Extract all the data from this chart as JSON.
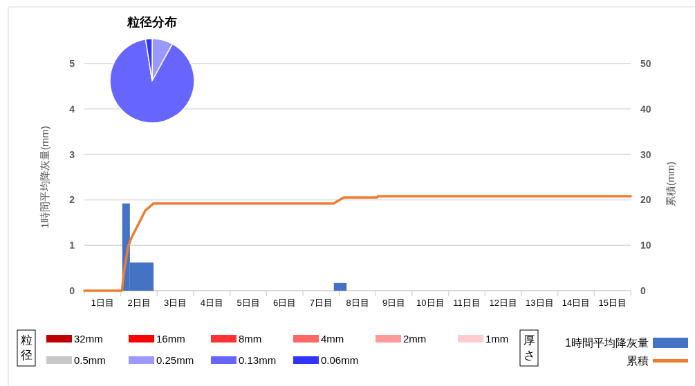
{
  "chart_data": [
    {
      "type": "line",
      "ylabel": "1時間平均降灰量(mm)",
      "y2label": "累積(mm)",
      "legend_title": "厚さ",
      "legend": "bottom right",
      "grid": "y",
      "xlim": [
        0,
        15
      ],
      "xticks": [
        {
          "value": 0,
          "label": null
        },
        {
          "value": 0.5,
          "label": "1日目"
        },
        {
          "value": 1,
          "label": null
        },
        {
          "value": 1.5,
          "label": "2日目"
        },
        {
          "value": 2,
          "label": null
        },
        {
          "value": 2.5,
          "label": "3日目"
        },
        {
          "value": 3,
          "label": null
        },
        {
          "value": 3.5,
          "label": "4日目"
        },
        {
          "value": 4,
          "label": null
        },
        {
          "value": 4.5,
          "label": "5日目"
        },
        {
          "value": 5,
          "label": null
        },
        {
          "value": 5.5,
          "label": "6日目"
        },
        {
          "value": 6,
          "label": null
        },
        {
          "value": 6.5,
          "label": "7日目"
        },
        {
          "value": 7,
          "label": null
        },
        {
          "value": 7.5,
          "label": "8日目"
        },
        {
          "value": 8,
          "label": null
        },
        {
          "value": 8.5,
          "label": "9日目"
        },
        {
          "value": 9,
          "label": null
        },
        {
          "value": 9.5,
          "label": "10日目"
        },
        {
          "value": 10,
          "label": null
        },
        {
          "value": 10.5,
          "label": "11日目"
        },
        {
          "value": 11,
          "label": null
        },
        {
          "value": 11.5,
          "label": "12日目"
        },
        {
          "value": 12,
          "label": null
        },
        {
          "value": 12.5,
          "label": "13日目"
        },
        {
          "value": 13,
          "label": null
        },
        {
          "value": 13.5,
          "label": "14日目"
        },
        {
          "value": 14,
          "label": null
        },
        {
          "value": 14.5,
          "label": "15日目"
        },
        {
          "value": 15,
          "label": null
        }
      ],
      "ylim": [
        0,
        5
      ],
      "yticks": [
        0,
        1,
        2,
        3,
        4,
        5
      ],
      "y2lim": [
        0,
        50
      ],
      "y2ticks": [
        0,
        10,
        20,
        30,
        40,
        50
      ],
      "series": [
        {
          "name": "1時間平均降灰量",
          "type": "histogram",
          "color": "#4472c4",
          "bins": [
            1.04,
            1.25,
            1.9,
            6.85,
            7.2
          ],
          "values": [
            1.92,
            0.62,
            0,
            0.17
          ]
        },
        {
          "name": "累積",
          "type": "line",
          "axis": "y2",
          "color": "#ed7d31",
          "x": [
            0,
            1.03,
            1.1,
            1.2,
            1.29,
            1.48,
            1.67,
            1.9,
            6.84,
            7.12,
            8.03,
            8.07,
            15
          ],
          "values": [
            0,
            0,
            4.7,
            9.7,
            11.6,
            14.6,
            17.6,
            19.2,
            19.2,
            20.5,
            20.5,
            20.8,
            20.8
          ]
        }
      ]
    },
    {
      "type": "pie",
      "title": "粒径分布",
      "legend_title": "粒径",
      "legend": "bottom",
      "categories": [
        "32mm",
        "16mm",
        "8mm",
        "4mm",
        "2mm",
        "1mm",
        "0.5mm",
        "0.25mm",
        "0.13mm",
        "0.06mm"
      ],
      "values": [
        0,
        0,
        0,
        0,
        0,
        0,
        0,
        8,
        89.5,
        2.5
      ],
      "colors": [
        "#c00000",
        "#ff0000",
        "#ff3333",
        "#ff6666",
        "#ff9999",
        "#ffcccc",
        "#c8c8c8",
        "#9999ff",
        "#6666ff",
        "#3333ff"
      ]
    }
  ]
}
